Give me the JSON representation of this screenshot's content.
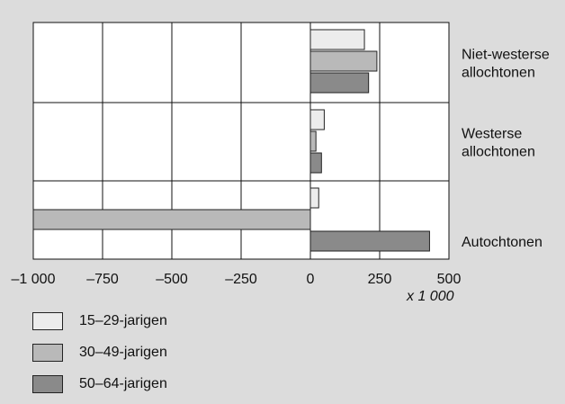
{
  "chart_data": {
    "type": "bar",
    "orientation": "horizontal",
    "title": "",
    "categories": [
      "Niet-westerse allochtonen",
      "Westerse allochtonen",
      "Autochtonen"
    ],
    "category_lines": [
      [
        "Niet-westerse",
        "allochtonen"
      ],
      [
        "Westerse",
        "allochtonen"
      ],
      [
        "Autochtonen"
      ]
    ],
    "series": [
      {
        "name": "15–29-jarigen",
        "color": "#ececec",
        "values": [
          195,
          50,
          30
        ]
      },
      {
        "name": "30–49-jarigen",
        "color": "#b9b9b9",
        "values": [
          240,
          20,
          -1000
        ]
      },
      {
        "name": "50–64-jarigen",
        "color": "#8a8a8a",
        "values": [
          210,
          40,
          430
        ]
      }
    ],
    "xlim": [
      -1000,
      500
    ],
    "xticks": [
      -1000,
      -750,
      -500,
      -250,
      0,
      250,
      500
    ],
    "xtick_labels": [
      "–1 000",
      "–750",
      "–500",
      "–250",
      "0",
      "250",
      "500"
    ],
    "x_unit": "x 1 000",
    "grid": true,
    "legend_position": "bottom-left"
  }
}
